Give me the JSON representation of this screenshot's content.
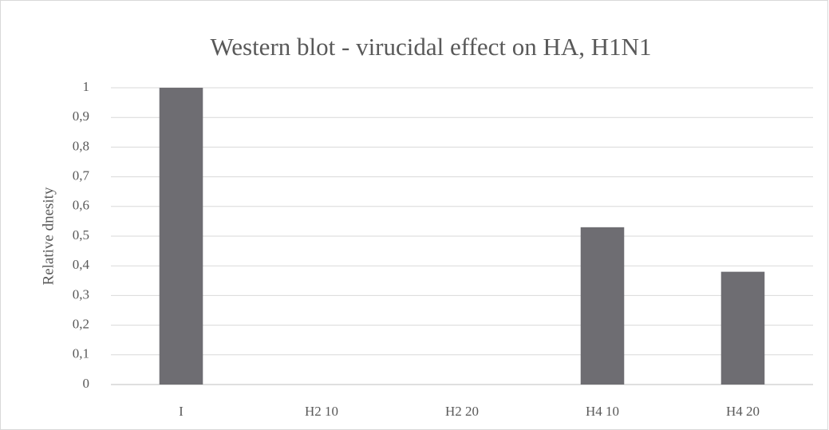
{
  "chart_data": {
    "type": "bar",
    "title": "Western blot - virucidal effect on HA, H1N1",
    "y_label": "Relative dnesity",
    "categories": [
      "I",
      "H2 10",
      "H2 20",
      "H4 10",
      "H4 20"
    ],
    "values": [
      1,
      0,
      0,
      0.53,
      0.38
    ],
    "color": "#6e6d72",
    "ylim": [
      0,
      1
    ],
    "yticks": [
      0,
      {
        "value": 0.1,
        "label": "0,1"
      },
      {
        "value": 0.2,
        "label": "0,2"
      },
      {
        "value": 0.3,
        "label": "0,3"
      },
      {
        "value": 0.4,
        "label": "0,4"
      },
      {
        "value": 0.5,
        "label": "0,5"
      },
      {
        "value": 0.6,
        "label": "0,6"
      },
      {
        "value": 0.7,
        "label": "0,7"
      },
      {
        "value": 0.8,
        "label": "0,8"
      },
      {
        "value": 0.9,
        "label": "0,9"
      },
      1
    ],
    "grid": true
  }
}
